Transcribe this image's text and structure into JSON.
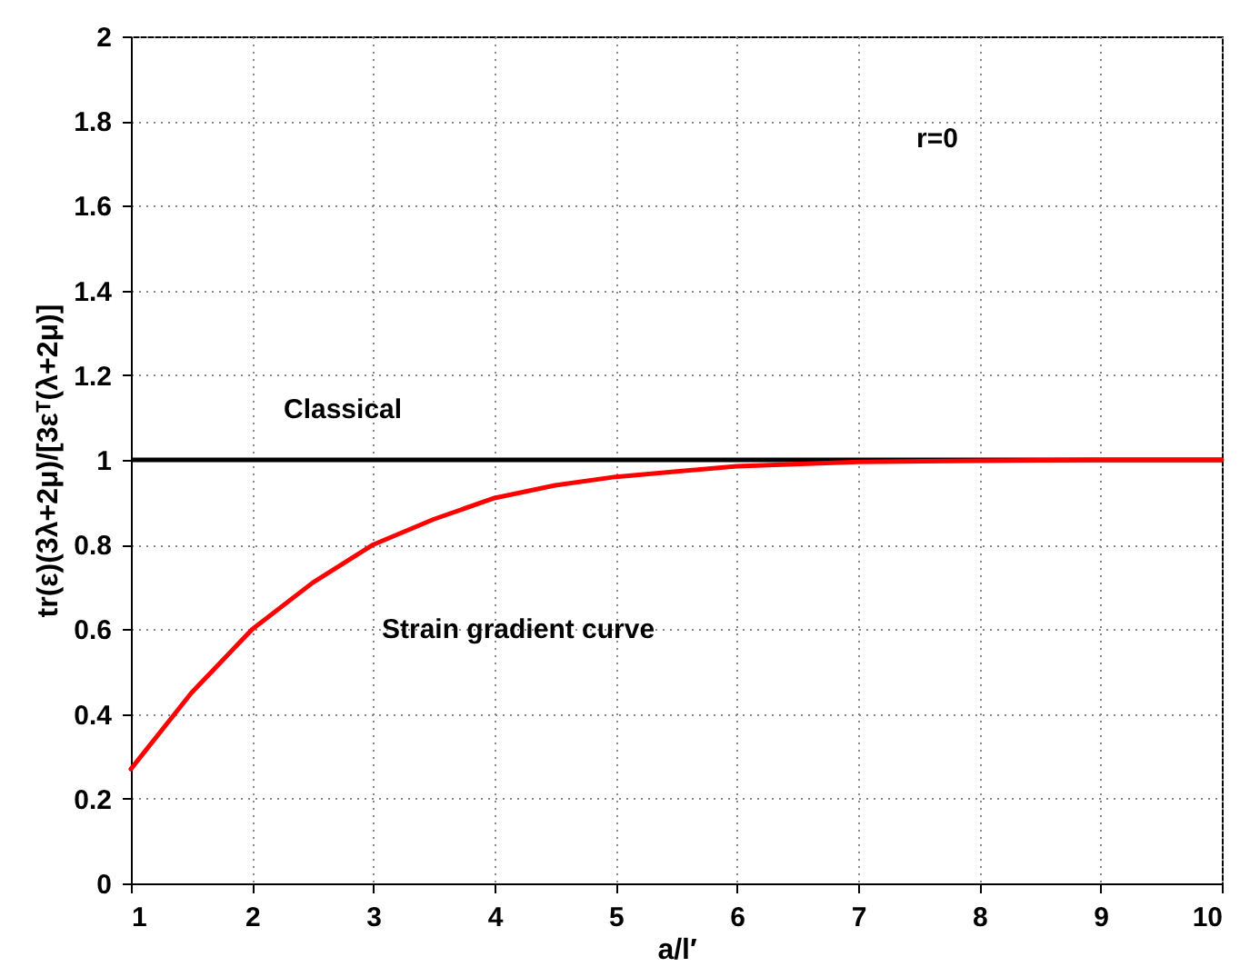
{
  "chart_data": {
    "type": "line",
    "xlabel": "a/l′",
    "ylabel": "tr(ε)(3λ+2μ)/[3εᵀ(λ+2μ)]",
    "x": [
      1,
      1.5,
      2,
      2.5,
      3,
      3.5,
      4,
      4.5,
      5,
      6,
      7,
      8,
      9,
      10
    ],
    "series": [
      {
        "color": "#ff0000",
        "values": [
          0.27,
          0.45,
          0.6,
          0.71,
          0.8,
          0.86,
          0.91,
          0.94,
          0.96,
          0.985,
          0.995,
          0.998,
          1.0,
          1.0
        ]
      }
    ],
    "ref_lines": [
      {
        "axis": "y",
        "value": 1,
        "label": "Classical",
        "color": "#000000"
      }
    ],
    "annotations": [
      "r=0",
      "Strain gradient curve"
    ],
    "xlim": [
      1,
      10
    ],
    "xticks": [
      1,
      2,
      3,
      4,
      5,
      6,
      7,
      8,
      9,
      10
    ],
    "ylim": [
      0,
      2
    ],
    "yticks": [
      0,
      0.2,
      0.4,
      0.6,
      0.8,
      1,
      1.2,
      1.4,
      1.6,
      1.8,
      2
    ],
    "grid": true,
    "line_style": "solid",
    "marker": "none"
  }
}
